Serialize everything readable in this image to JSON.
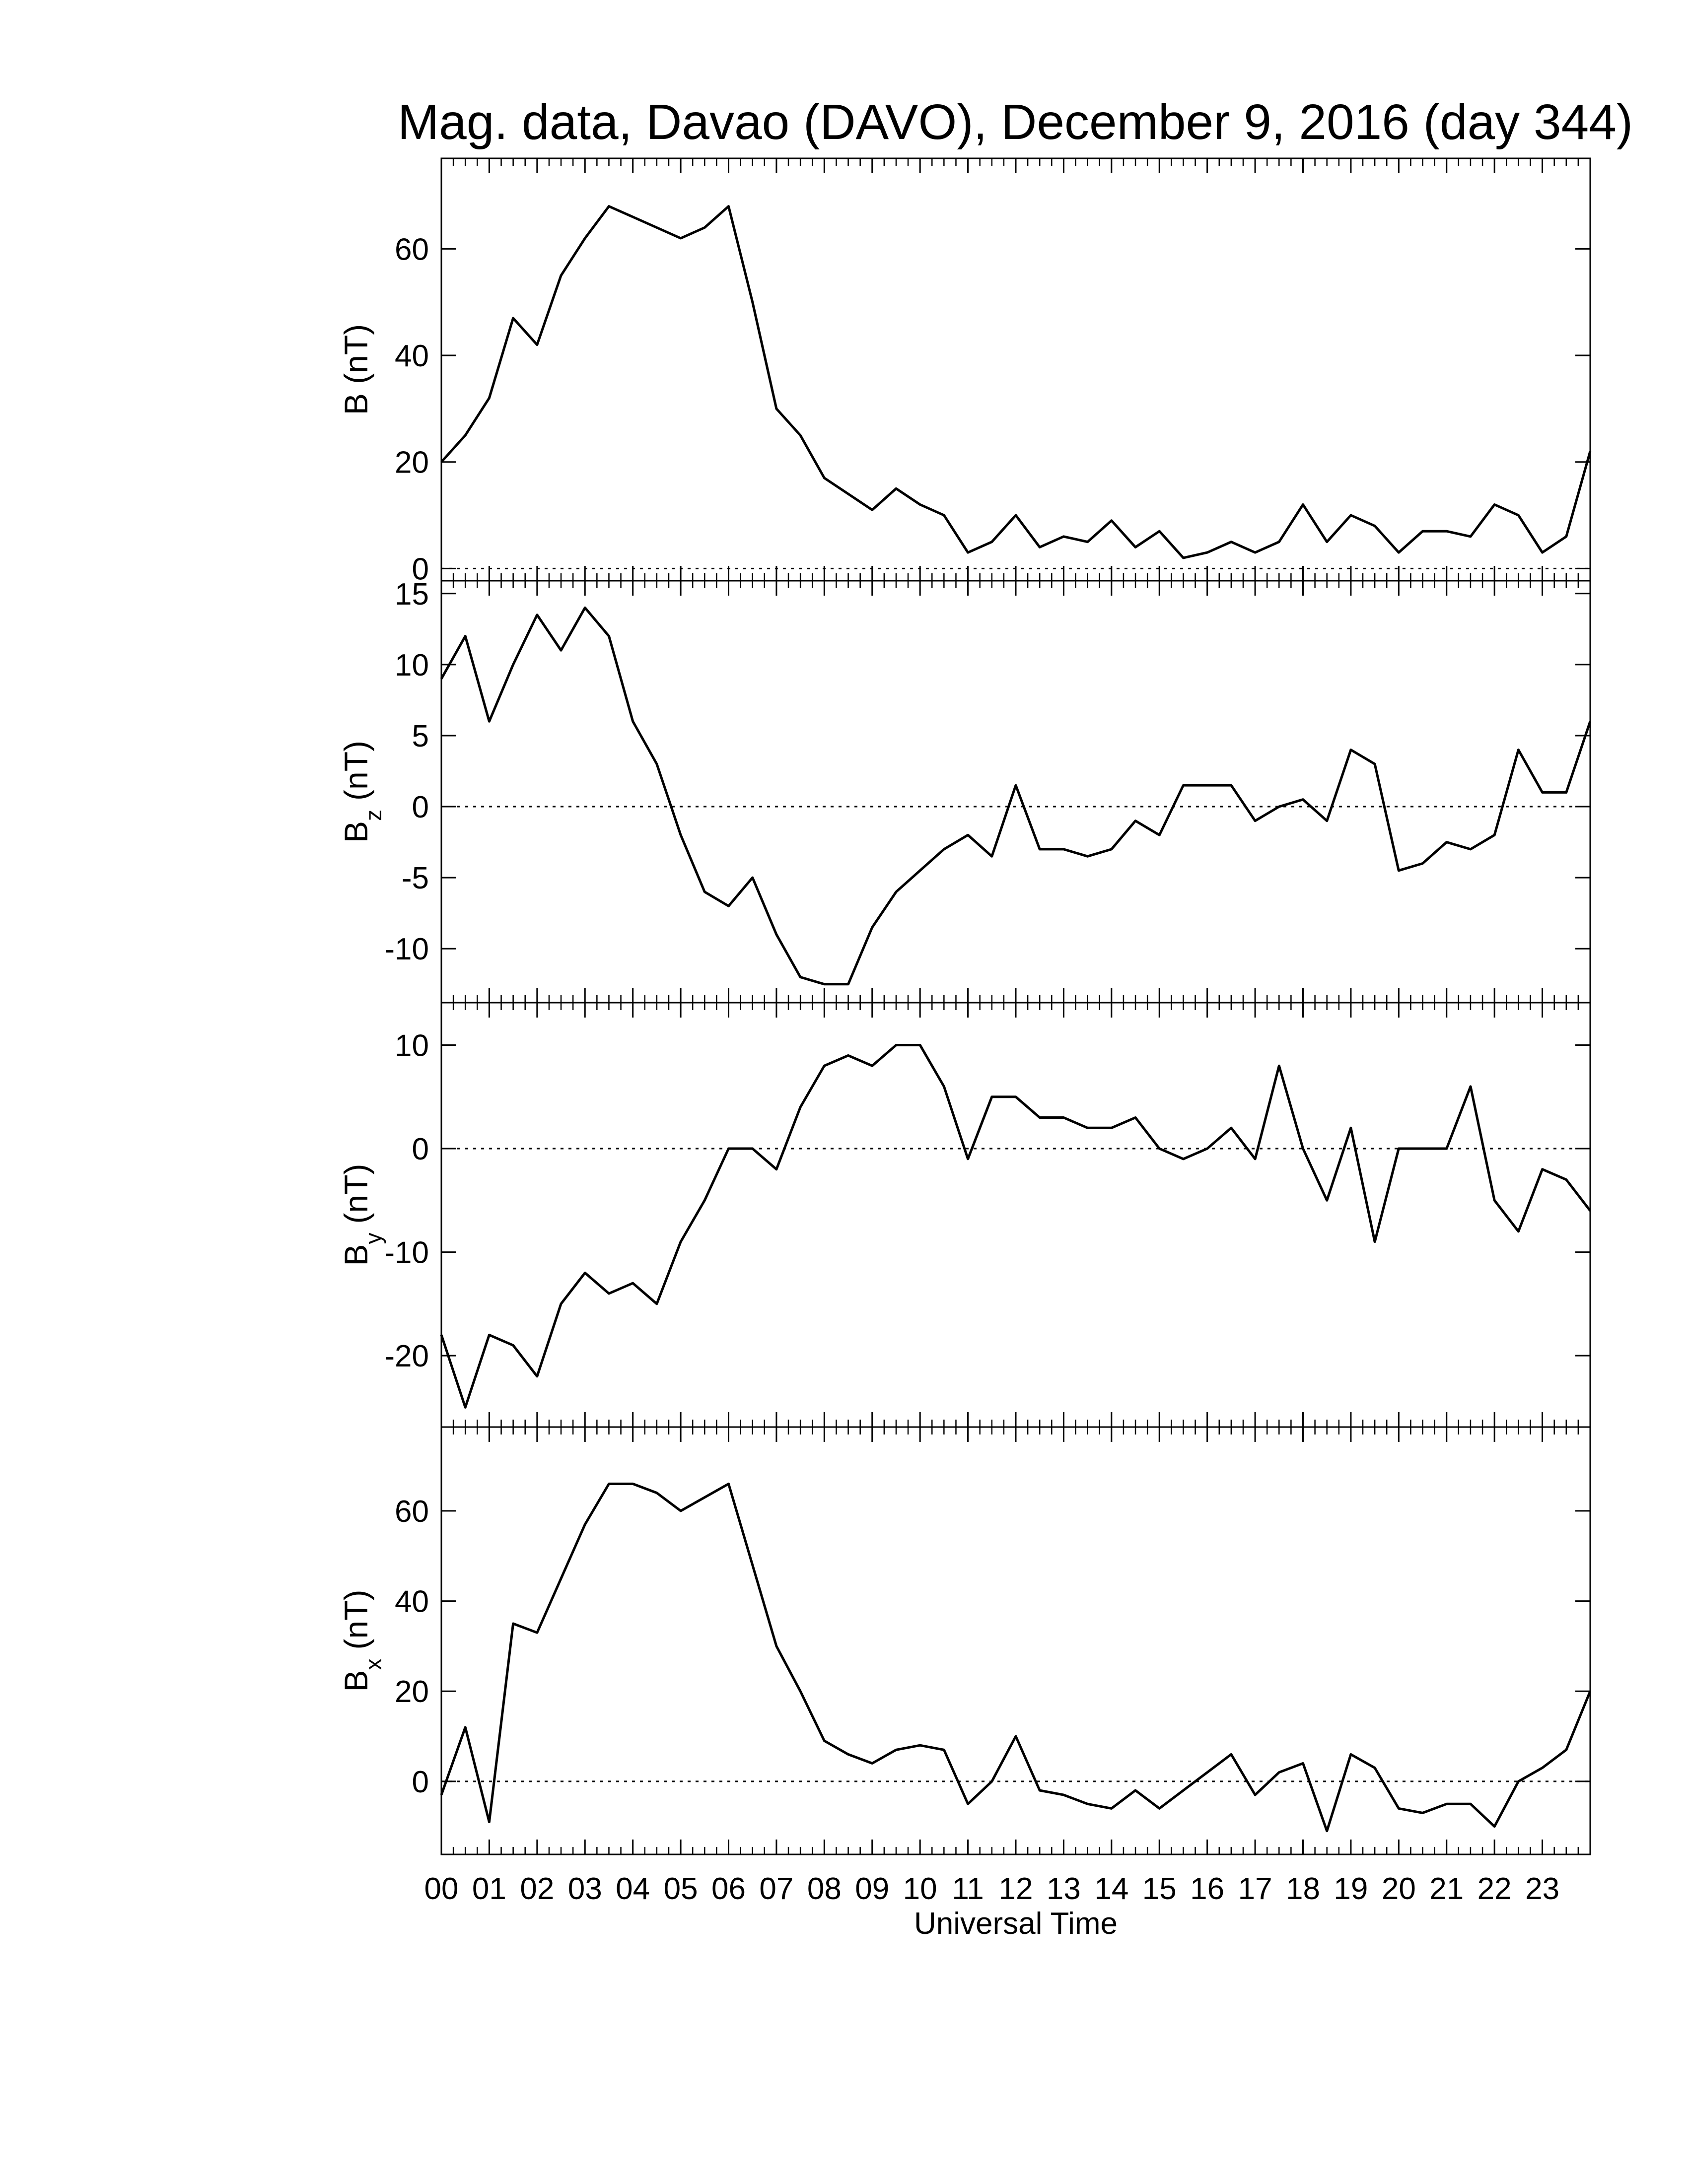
{
  "chart_data": [
    {
      "type": "line",
      "title": "Mag. data, Davao (DAVO), December 9, 2016 (day 344)",
      "ylabel": "B (nT)",
      "color": "#000000",
      "x": [
        0,
        0.5,
        1,
        1.5,
        2,
        2.5,
        3,
        3.5,
        4,
        4.5,
        5,
        5.5,
        6,
        6.5,
        7,
        7.5,
        8,
        8.5,
        9,
        9.5,
        10,
        10.5,
        11,
        11.5,
        12,
        12.5,
        13,
        13.5,
        14,
        14.5,
        15,
        15.5,
        16,
        16.5,
        17,
        17.5,
        18,
        18.5,
        19,
        19.5,
        20,
        20.5,
        21,
        21.5,
        22,
        22.5,
        23,
        23.5,
        24
      ],
      "values": [
        20,
        25,
        32,
        47,
        42,
        55,
        62,
        68,
        66,
        64,
        62,
        64,
        68,
        50,
        30,
        25,
        17,
        14,
        11,
        15,
        12,
        10,
        3,
        5,
        10,
        4,
        6,
        5,
        9,
        4,
        7,
        2,
        3,
        5,
        3,
        5,
        12,
        5,
        10,
        8,
        3,
        7,
        7,
        6,
        12,
        10,
        3,
        6,
        22
      ],
      "xlim": [
        0,
        24
      ],
      "ylim": [
        -2.3,
        77
      ],
      "yticks": [
        0,
        20,
        40,
        60
      ],
      "zero_line": 0
    },
    {
      "type": "line",
      "ylabel": "B",
      "ylabel_sub": "z",
      "ylabel_unit": "(nT)",
      "color": "#000000",
      "x": [
        0,
        0.5,
        1,
        1.5,
        2,
        2.5,
        3,
        3.5,
        4,
        4.5,
        5,
        5.5,
        6,
        6.5,
        7,
        7.5,
        8,
        8.5,
        9,
        9.5,
        10,
        10.5,
        11,
        11.5,
        12,
        12.5,
        13,
        13.5,
        14,
        14.5,
        15,
        15.5,
        16,
        16.5,
        17,
        17.5,
        18,
        18.5,
        19,
        19.5,
        20,
        20.5,
        21,
        21.5,
        22,
        22.5,
        23,
        23.5,
        24
      ],
      "values": [
        9,
        12,
        6,
        10,
        13.5,
        11,
        14,
        12,
        6,
        3,
        -2,
        -6,
        -7,
        -5,
        -9,
        -12,
        -12.5,
        -12.5,
        -8.5,
        -6,
        -4.5,
        -3,
        -2,
        -3.5,
        1.5,
        -3,
        -3,
        -3.5,
        -3,
        -1,
        -2,
        1.5,
        1.5,
        1.5,
        -1,
        0,
        0.5,
        -1,
        4,
        3,
        -4.5,
        -4,
        -2.5,
        -3,
        -2,
        4,
        1,
        1,
        6
      ],
      "xlim": [
        0,
        24
      ],
      "ylim": [
        -13.8,
        15.9
      ],
      "yticks": [
        -10,
        -5,
        0,
        5,
        10,
        15
      ],
      "zero_line": 0
    },
    {
      "type": "line",
      "ylabel": "B",
      "ylabel_sub": "y",
      "ylabel_unit": "(nT)",
      "color": "#000000",
      "x": [
        0,
        0.5,
        1,
        1.5,
        2,
        2.5,
        3,
        3.5,
        4,
        4.5,
        5,
        5.5,
        6,
        6.5,
        7,
        7.5,
        8,
        8.5,
        9,
        9.5,
        10,
        10.5,
        11,
        11.5,
        12,
        12.5,
        13,
        13.5,
        14,
        14.5,
        15,
        15.5,
        16,
        16.5,
        17,
        17.5,
        18,
        18.5,
        19,
        19.5,
        20,
        20.5,
        21,
        21.5,
        22,
        22.5,
        23,
        23.5,
        24
      ],
      "values": [
        -18,
        -25,
        -18,
        -19,
        -22,
        -15,
        -12,
        -14,
        -13,
        -15,
        -9,
        -5,
        0,
        0,
        -2,
        4,
        8,
        9,
        8,
        10,
        10,
        6,
        -1,
        5,
        5,
        3,
        3,
        2,
        2,
        3,
        0,
        -1,
        0,
        2,
        -1,
        8,
        0,
        -5,
        2,
        -9,
        0,
        0,
        0,
        6,
        -5,
        -8,
        -2,
        -3,
        -6
      ],
      "xlim": [
        0,
        24
      ],
      "ylim": [
        -26.9,
        14.1
      ],
      "yticks": [
        -20,
        -10,
        0,
        10
      ],
      "zero_line": 0
    },
    {
      "type": "line",
      "ylabel": "B",
      "ylabel_sub": "x",
      "ylabel_unit": "(nT)",
      "xlabel": "Universal Time",
      "color": "#000000",
      "x": [
        0,
        0.5,
        1,
        1.5,
        2,
        2.5,
        3,
        3.5,
        4,
        4.5,
        5,
        5.5,
        6,
        6.5,
        7,
        7.5,
        8,
        8.5,
        9,
        9.5,
        10,
        10.5,
        11,
        11.5,
        12,
        12.5,
        13,
        13.5,
        14,
        14.5,
        15,
        15.5,
        16,
        16.5,
        17,
        17.5,
        18,
        18.5,
        19,
        19.5,
        20,
        20.5,
        21,
        21.5,
        22,
        22.5,
        23,
        23.5,
        24
      ],
      "values": [
        -3,
        12,
        -9,
        35,
        33,
        45,
        57,
        66,
        66,
        64,
        60,
        63,
        66,
        48,
        30,
        20,
        9,
        6,
        4,
        7,
        8,
        7,
        -5,
        0,
        10,
        -2,
        -3,
        -5,
        -6,
        -2,
        -6,
        -2,
        2,
        6,
        -3,
        2,
        4,
        -11,
        6,
        3,
        -6,
        -7,
        -5,
        -5,
        -10,
        0,
        3,
        7,
        20
      ],
      "xlim": [
        0,
        24
      ],
      "ylim": [
        -16.2,
        78.6
      ],
      "yticks": [
        0,
        20,
        40,
        60
      ],
      "zero_line": 0,
      "xticks": [
        {
          "value": 0,
          "label": "00"
        },
        {
          "value": 1,
          "label": "01"
        },
        {
          "value": 2,
          "label": "02"
        },
        {
          "value": 3,
          "label": "03"
        },
        {
          "value": 4,
          "label": "04"
        },
        {
          "value": 5,
          "label": "05"
        },
        {
          "value": 6,
          "label": "06"
        },
        {
          "value": 7,
          "label": "07"
        },
        {
          "value": 8,
          "label": "08"
        },
        {
          "value": 9,
          "label": "09"
        },
        10,
        11,
        12,
        13,
        14,
        15,
        16,
        17,
        18,
        19,
        20,
        21,
        22,
        23
      ]
    }
  ]
}
